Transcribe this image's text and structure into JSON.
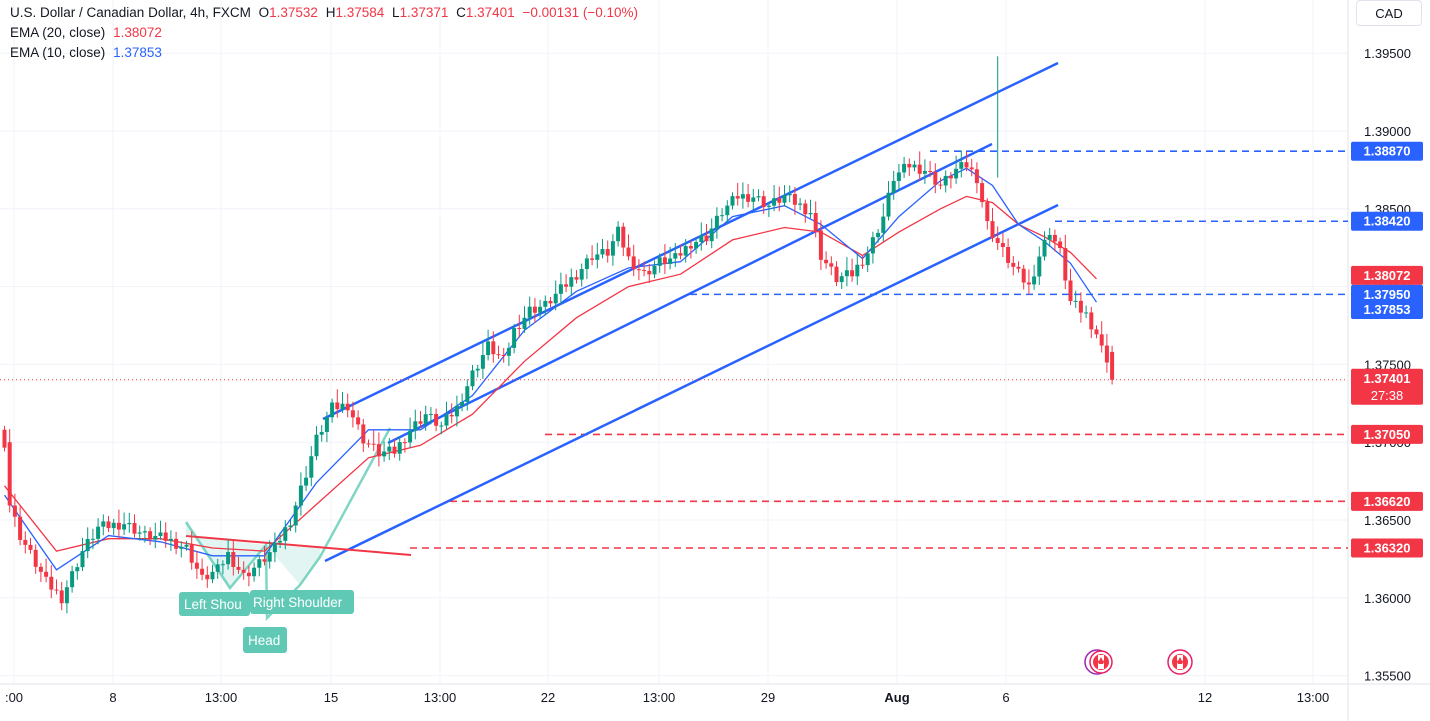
{
  "legend": {
    "symbol": "U.S. Dollar / Canadian Dollar, 4h, FXCM",
    "o_label": "O",
    "o": "1.37532",
    "h_label": "H",
    "h": "1.37584",
    "l_label": "L",
    "l": "1.37371",
    "c_label": "C",
    "c": "1.37401",
    "change": "−0.00131 (−0.10%)",
    "ema20_label": "EMA (20, close)",
    "ema20": "1.38072",
    "ema10_label": "EMA (10, close)",
    "ema10": "1.37853"
  },
  "currency_button": "CAD",
  "colors": {
    "up": "#089981",
    "down": "#f23645",
    "ema20": "#f23645",
    "ema10": "#2962ff",
    "channel": "#2962ff",
    "support": "#f23645",
    "hs": "#5fc9b5"
  },
  "chart_data": {
    "type": "candlestick",
    "title": "U.S. Dollar / Canadian Dollar, 4h, FXCM",
    "y_axis": {
      "ylim": [
        1.3545,
        1.3985
      ],
      "ticks": [
        "1.39500",
        "1.39000",
        "1.38500",
        "1.38000",
        "1.37500",
        "1.37000",
        "1.36500",
        "1.36000",
        "1.35500"
      ]
    },
    "x_axis": {
      "ticks": [
        ":00",
        "8",
        "13:00",
        "15",
        "13:00",
        "22",
        "13:00",
        "29",
        "Aug",
        "6",
        "12",
        "13:00"
      ]
    },
    "price_labels": [
      {
        "value": "1.38870",
        "color": "#2962ff"
      },
      {
        "value": "1.38420",
        "color": "#2962ff"
      },
      {
        "value": "1.38072",
        "color": "#f23645"
      },
      {
        "value": "1.37950",
        "color": "#2962ff"
      },
      {
        "value": "1.37853",
        "color": "#2962ff"
      },
      {
        "value": "1.37401",
        "color": "#f23645",
        "countdown": "27:38"
      },
      {
        "value": "1.37050",
        "color": "#f23645"
      },
      {
        "value": "1.36620",
        "color": "#f23645"
      },
      {
        "value": "1.36320",
        "color": "#f23645"
      }
    ],
    "levels": [
      {
        "y": 1.3887,
        "color": "#2962ff"
      },
      {
        "y": 1.3842,
        "color": "#2962ff"
      },
      {
        "y": 1.3795,
        "color": "#2962ff"
      },
      {
        "y": 1.3705,
        "color": "#f23645"
      },
      {
        "y": 1.3662,
        "color": "#f23645"
      },
      {
        "y": 1.3632,
        "color": "#f23645"
      }
    ],
    "last_price": 1.37401,
    "annotations": [
      "Left Shou",
      "Right Shoulder",
      "Head"
    ],
    "anchors": [
      [
        0,
        1.37
      ],
      [
        1,
        1.366
      ],
      [
        3,
        1.364
      ],
      [
        8,
        1.361
      ],
      [
        11,
        1.36
      ],
      [
        15,
        1.363
      ],
      [
        18,
        1.3645
      ],
      [
        23,
        1.3648
      ],
      [
        27,
        1.364
      ],
      [
        31,
        1.3638
      ],
      [
        35,
        1.3632
      ],
      [
        38,
        1.3612
      ],
      [
        41,
        1.3618
      ],
      [
        43,
        1.3628
      ],
      [
        46,
        1.3614
      ],
      [
        49,
        1.3622
      ],
      [
        52,
        1.3632
      ],
      [
        55,
        1.365
      ],
      [
        58,
        1.368
      ],
      [
        60,
        1.3702
      ],
      [
        63,
        1.3722
      ],
      [
        66,
        1.3724
      ],
      [
        69,
        1.3702
      ],
      [
        72,
        1.3693
      ],
      [
        75,
        1.3694
      ],
      [
        78,
        1.3708
      ],
      [
        81,
        1.3718
      ],
      [
        84,
        1.371
      ],
      [
        87,
        1.3722
      ],
      [
        90,
        1.3744
      ],
      [
        93,
        1.3762
      ],
      [
        96,
        1.3752
      ],
      [
        98,
        1.3772
      ],
      [
        101,
        1.3785
      ],
      [
        104,
        1.3788
      ],
      [
        107,
        1.3798
      ],
      [
        110,
        1.3808
      ],
      [
        113,
        1.382
      ],
      [
        116,
        1.3822
      ],
      [
        118,
        1.3835
      ],
      [
        120,
        1.3818
      ],
      [
        123,
        1.3808
      ],
      [
        126,
        1.3816
      ],
      [
        129,
        1.3818
      ],
      [
        132,
        1.3828
      ],
      [
        135,
        1.3832
      ],
      [
        138,
        1.3848
      ],
      [
        141,
        1.3858
      ],
      [
        144,
        1.3858
      ],
      [
        147,
        1.3852
      ],
      [
        150,
        1.3858
      ],
      [
        153,
        1.3852
      ],
      [
        155,
        1.3848
      ],
      [
        157,
        1.382
      ],
      [
        160,
        1.3805
      ],
      [
        163,
        1.3808
      ],
      [
        166,
        1.3822
      ],
      [
        169,
        1.3845
      ],
      [
        171,
        1.387
      ],
      [
        174,
        1.3878
      ],
      [
        177,
        1.3875
      ],
      [
        180,
        1.3865
      ],
      [
        183,
        1.3875
      ],
      [
        185,
        1.3878
      ],
      [
        187,
        1.387
      ],
      [
        189,
        1.384
      ],
      [
        191,
        1.3828
      ],
      [
        194,
        1.3812
      ],
      [
        197,
        1.38
      ],
      [
        199,
        1.382
      ],
      [
        201,
        1.3836
      ],
      [
        203,
        1.3822
      ],
      [
        205,
        1.379
      ],
      [
        208,
        1.3782
      ],
      [
        210,
        1.377
      ],
      [
        211,
        1.376
      ],
      [
        212,
        1.3754
      ]
    ],
    "ema10_points": [
      [
        0,
        1.3666
      ],
      [
        10,
        1.3618
      ],
      [
        20,
        1.364
      ],
      [
        30,
        1.3636
      ],
      [
        40,
        1.3627
      ],
      [
        50,
        1.3627
      ],
      [
        60,
        1.3674
      ],
      [
        70,
        1.3708
      ],
      [
        80,
        1.3708
      ],
      [
        90,
        1.373
      ],
      [
        100,
        1.3772
      ],
      [
        110,
        1.3797
      ],
      [
        120,
        1.3812
      ],
      [
        130,
        1.3816
      ],
      [
        140,
        1.3845
      ],
      [
        150,
        1.3852
      ],
      [
        157,
        1.384
      ],
      [
        165,
        1.3818
      ],
      [
        172,
        1.3845
      ],
      [
        180,
        1.3868
      ],
      [
        185,
        1.3876
      ],
      [
        190,
        1.3865
      ],
      [
        195,
        1.384
      ],
      [
        200,
        1.3829
      ],
      [
        205,
        1.3815
      ],
      [
        210,
        1.379
      ]
    ],
    "ema20_points": [
      [
        0,
        1.3672
      ],
      [
        10,
        1.363
      ],
      [
        20,
        1.3638
      ],
      [
        30,
        1.3638
      ],
      [
        40,
        1.3632
      ],
      [
        50,
        1.363
      ],
      [
        60,
        1.366
      ],
      [
        70,
        1.369
      ],
      [
        80,
        1.3698
      ],
      [
        90,
        1.3718
      ],
      [
        100,
        1.3752
      ],
      [
        110,
        1.378
      ],
      [
        120,
        1.38
      ],
      [
        130,
        1.3808
      ],
      [
        140,
        1.383
      ],
      [
        150,
        1.3838
      ],
      [
        157,
        1.3835
      ],
      [
        165,
        1.382
      ],
      [
        172,
        1.3835
      ],
      [
        180,
        1.385
      ],
      [
        185,
        1.3858
      ],
      [
        190,
        1.3854
      ],
      [
        195,
        1.384
      ],
      [
        200,
        1.3832
      ],
      [
        205,
        1.3822
      ],
      [
        210,
        1.3805
      ]
    ]
  }
}
